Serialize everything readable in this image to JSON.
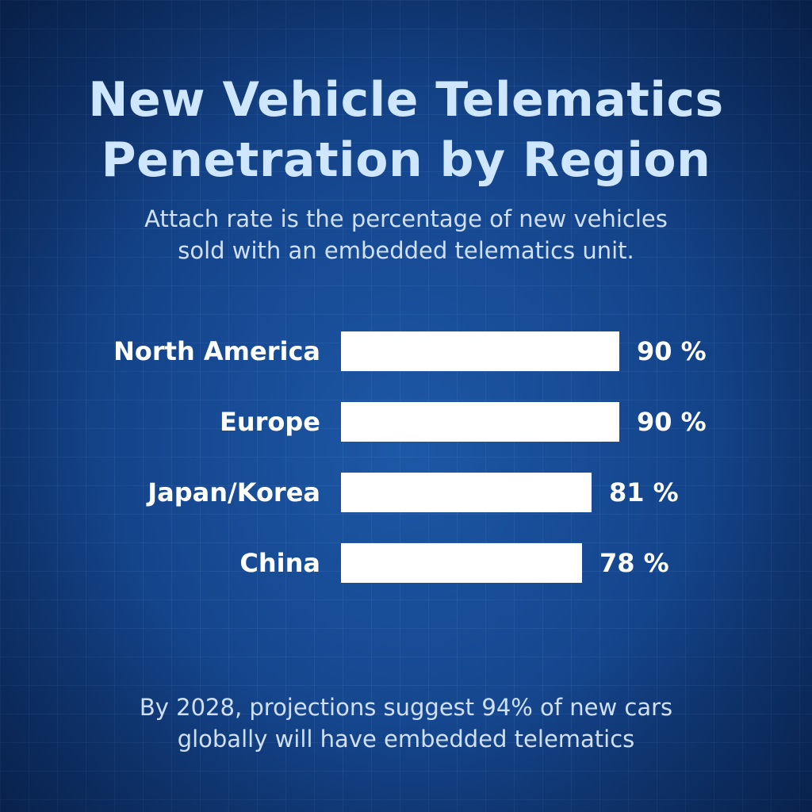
{
  "title_lines": [
    "New Vehicle Telematics",
    "Penetration by Region"
  ],
  "subtitle_lines": [
    "Attach rate  is the percentage of new vehicles",
    "sold with an embedded telematics unit."
  ],
  "footnote_lines": [
    "By 2028, projections suggest 94% of new cars",
    "globally will have embedded telematics"
  ],
  "colors": {
    "background": "#15468e",
    "title": "#cfe6ff",
    "bar": "#ffffff",
    "text": "#ffffff"
  },
  "chart_data": {
    "type": "bar",
    "orientation": "horizontal",
    "title": "New Vehicle Telematics Penetration by Region",
    "categories": [
      "North America",
      "Europe",
      "Japan/Korea",
      "China"
    ],
    "values": [
      90,
      90,
      81,
      78
    ],
    "value_labels": [
      "90 %",
      "90 %",
      "81 %",
      "78 %"
    ],
    "unit": "%",
    "xlabel": "",
    "ylabel": "",
    "xlim": [
      0,
      100
    ],
    "grid": false,
    "legend": "none"
  }
}
